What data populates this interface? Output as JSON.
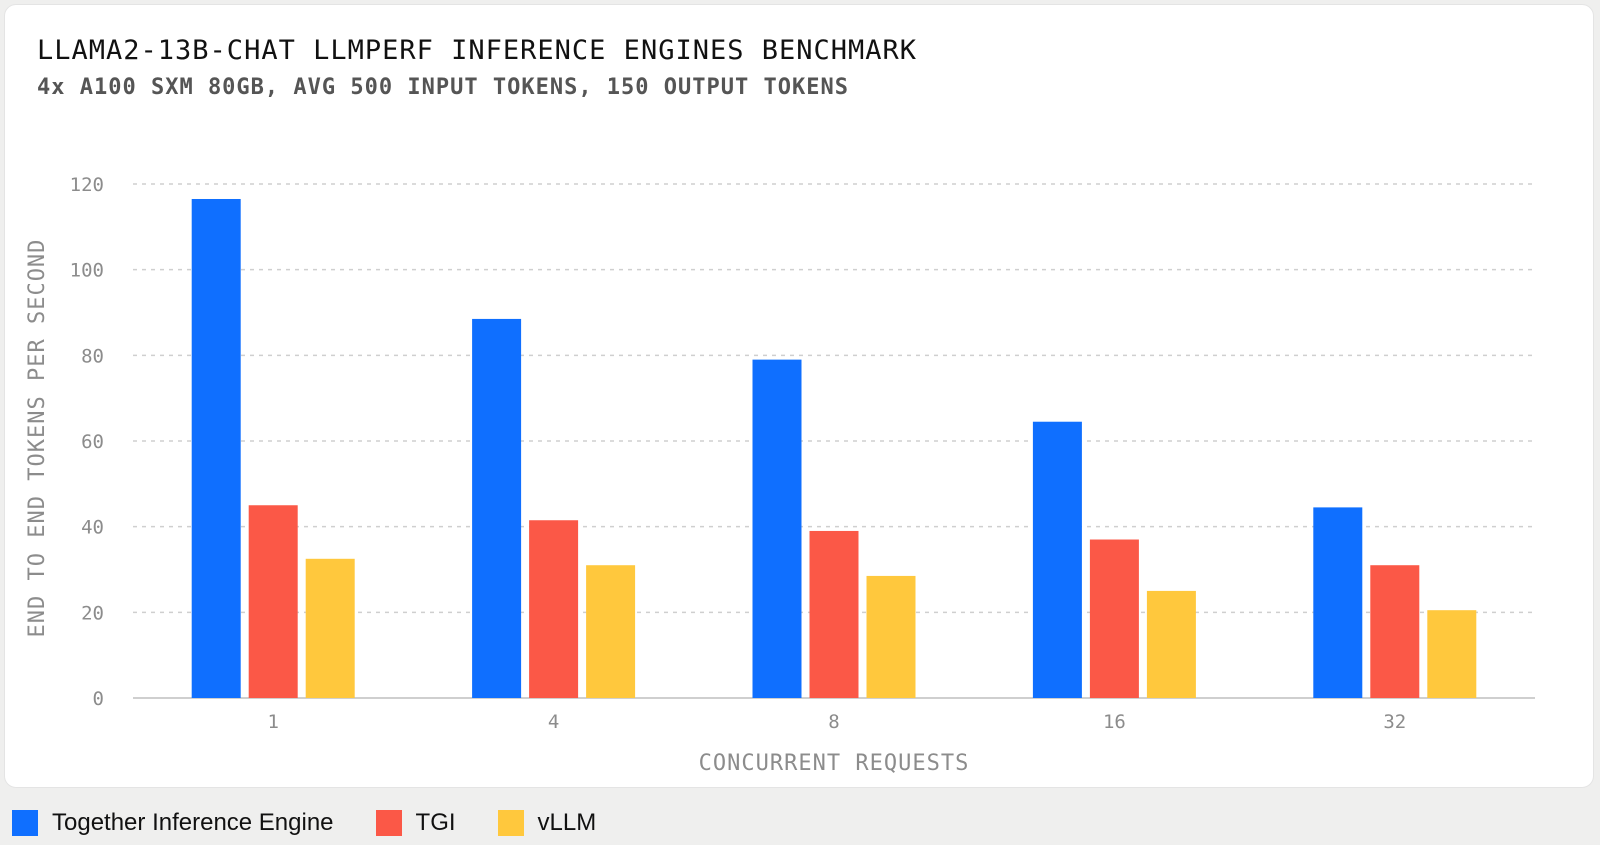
{
  "chart_data": {
    "type": "bar",
    "title": "LLAMA2-13B-CHAT LLMPERF INFERENCE ENGINES BENCHMARK",
    "subtitle": "4x A100 SXM 80GB, AVG 500 INPUT TOKENS, 150 OUTPUT TOKENS",
    "xlabel": "CONCURRENT REQUESTS",
    "ylabel": "END TO END TOKENS PER SECOND",
    "categories": [
      "1",
      "4",
      "8",
      "16",
      "32"
    ],
    "ylim": [
      0,
      120
    ],
    "yticks": [
      "0",
      "20",
      "40",
      "60",
      "80",
      "100",
      "120"
    ],
    "grid": true,
    "legend_position": "bottom-left",
    "series": [
      {
        "name": "Together Inference Engine",
        "color": "#0f6fff",
        "values": [
          116.5,
          88.5,
          79,
          64.5,
          44.5
        ]
      },
      {
        "name": "TGI",
        "color": "#fb5847",
        "values": [
          45,
          41.5,
          39,
          37,
          31
        ]
      },
      {
        "name": "vLLM",
        "color": "#ffc83d",
        "values": [
          32.5,
          31,
          28.5,
          25,
          20.5
        ]
      }
    ]
  }
}
